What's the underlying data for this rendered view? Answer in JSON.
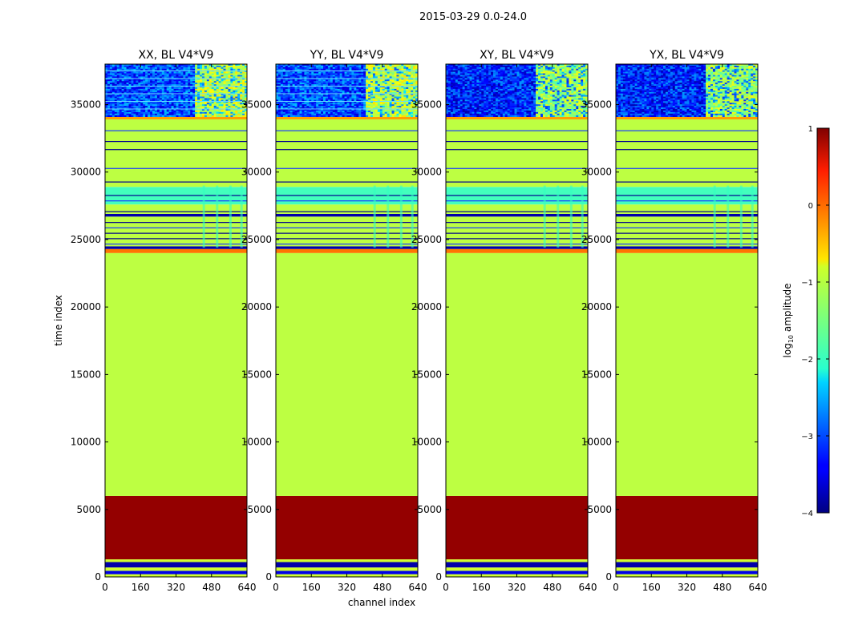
{
  "figure": {
    "suptitle": "2015-03-29 0.0-24.0"
  },
  "chart_data": {
    "type": "heatmap",
    "title": "2015-03-29 0.0-24.0",
    "panels": [
      {
        "title": "XX, BL V4*V9",
        "pol": "XX"
      },
      {
        "title": "YY, BL V4*V9",
        "pol": "YY"
      },
      {
        "title": "XY, BL V4*V9",
        "pol": "XY"
      },
      {
        "title": "YX, BL V4*V9",
        "pol": "YX"
      }
    ],
    "xlabel": "channel index",
    "ylabel": "time index",
    "xlim": [
      0,
      640
    ],
    "ylim": [
      0,
      38000
    ],
    "xticks": [
      0,
      160,
      320,
      480,
      640
    ],
    "yticks": [
      0,
      5000,
      10000,
      15000,
      20000,
      25000,
      30000,
      35000
    ],
    "colorbar": {
      "label": "log10 amplitude",
      "label_main": "log",
      "label_sub": "10",
      "label_tail": " amplitude",
      "range": [
        -4,
        1
      ],
      "ticks": [
        -4,
        -3,
        -2,
        -1,
        0,
        1
      ],
      "tick_labels": [
        "−4",
        "−3",
        "−2",
        "−1",
        "0",
        "1"
      ],
      "colormap": "jet"
    },
    "bands": [
      {
        "t0": 0,
        "t1": 200,
        "value": -1.1
      },
      {
        "t0": 200,
        "t1": 450,
        "value": -3.5
      },
      {
        "t0": 450,
        "t1": 700,
        "value": -1.1
      },
      {
        "t0": 700,
        "t1": 1100,
        "value": -3.8
      },
      {
        "t0": 1100,
        "t1": 1300,
        "value": -1.1
      },
      {
        "t0": 1300,
        "t1": 6000,
        "value": 0.9
      },
      {
        "t0": 6000,
        "t1": 24000,
        "value": -1.2
      },
      {
        "t0": 24000,
        "t1": 24300,
        "value": -0.2
      },
      {
        "t0": 24300,
        "t1": 24500,
        "value": -3.8
      },
      {
        "t0": 24500,
        "t1": 26700,
        "value": -1.2
      },
      {
        "t0": 26700,
        "t1": 26900,
        "value": -3.8
      },
      {
        "t0": 26900,
        "t1": 27600,
        "value": -1.2
      },
      {
        "t0": 27600,
        "t1": 28900,
        "value": -1.8
      },
      {
        "t0": 28900,
        "t1": 33900,
        "value": -1.2
      },
      {
        "t0": 33900,
        "t1": 34100,
        "value": -0.4
      },
      {
        "t0": 34100,
        "t1": 38000,
        "value": -2.9
      }
    ],
    "rfi_channels": [
      400,
      640
    ]
  }
}
